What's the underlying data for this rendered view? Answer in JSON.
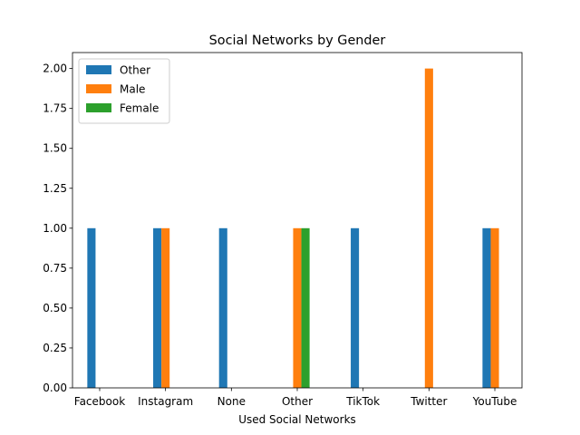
{
  "chart_data": {
    "type": "bar",
    "title": "Social Networks by Gender",
    "xlabel": "Used Social Networks",
    "ylabel": "",
    "categories": [
      "Facebook",
      "Instagram",
      "None",
      "Other",
      "TikTok",
      "Twitter",
      "YouTube"
    ],
    "ylim": [
      0,
      2.1
    ],
    "yticks": [
      "0.00",
      "0.25",
      "0.50",
      "0.75",
      "1.00",
      "1.25",
      "1.50",
      "1.75",
      "2.00"
    ],
    "grid": false,
    "legend_position": "top-left",
    "series": [
      {
        "name": "Other",
        "color": "#1f77b4",
        "values": [
          1,
          1,
          1,
          0,
          1,
          0,
          1
        ]
      },
      {
        "name": "Male",
        "color": "#ff7f0e",
        "values": [
          0,
          1,
          0,
          1,
          0,
          2,
          1
        ]
      },
      {
        "name": "Female",
        "color": "#2ca02c",
        "values": [
          0,
          0,
          0,
          1,
          0,
          0,
          0
        ]
      }
    ]
  }
}
